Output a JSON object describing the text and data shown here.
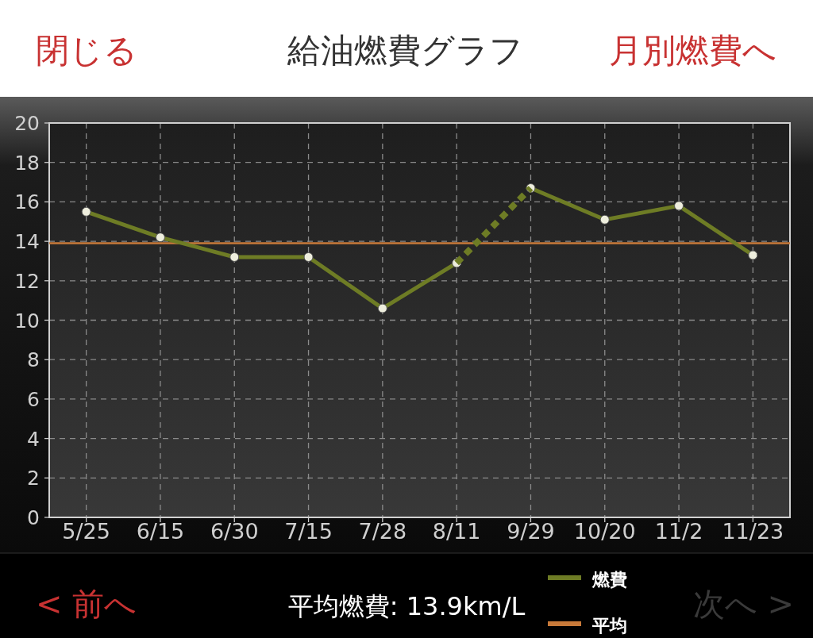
{
  "chart_data": {
    "type": "line",
    "title": "給油燃費グラフ",
    "categories": [
      "5/25",
      "6/15",
      "6/30",
      "7/15",
      "7/28",
      "8/11",
      "9/29",
      "10/20",
      "11/2",
      "11/23"
    ],
    "series": [
      {
        "name": "燃費",
        "color": "#6e7c25",
        "values": [
          15.5,
          14.2,
          13.2,
          13.2,
          10.6,
          12.9,
          null,
          null,
          null,
          null
        ],
        "marker": "circle"
      },
      {
        "color": "#6e7c25",
        "values": [
          null,
          null,
          null,
          null,
          null,
          null,
          16.7,
          15.1,
          15.8,
          13.3
        ],
        "marker": "circle"
      },
      {
        "color": "#6e7c25",
        "values": [
          null,
          null,
          null,
          null,
          null,
          12.9,
          16.7,
          null,
          null,
          null
        ],
        "line_style": "dashed",
        "marker": "none"
      }
    ],
    "ylim": [
      0,
      20
    ],
    "yticks": [
      0,
      2,
      4,
      6,
      8,
      10,
      12,
      14,
      16,
      18,
      20
    ],
    "grid": true,
    "legend": "bottom right",
    "ref_lines": [
      {
        "axis": "y",
        "value": 13.9,
        "label": "平均",
        "color": "#c87a3a"
      }
    ],
    "annotations": [
      "閉じる",
      "月別燃費へ",
      "< 前へ",
      "平均燃費: 13.9km/L",
      "次へ >"
    ]
  }
}
